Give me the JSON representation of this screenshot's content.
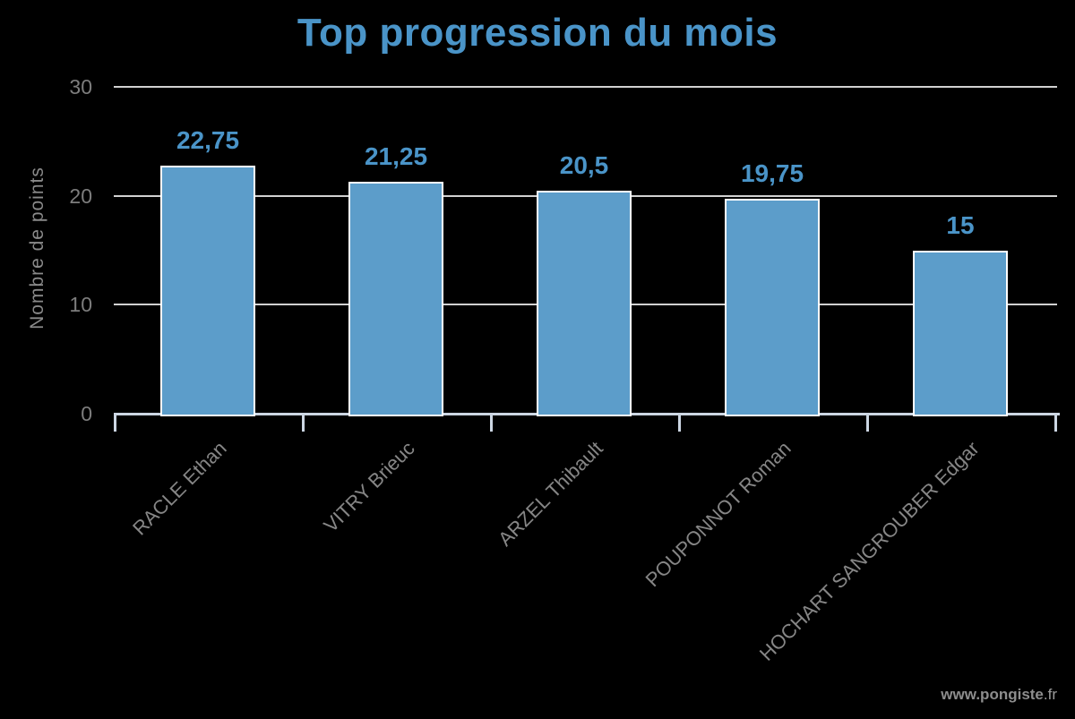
{
  "title": "Top progression du mois",
  "watermark": {
    "bold": "www.pongiste",
    "light": ".fr"
  },
  "chart_data": {
    "type": "bar",
    "title": "Top progression du mois",
    "xlabel": "",
    "ylabel": "Nombre de points",
    "categories": [
      "RACLE Ethan",
      "VITRY Brieuc",
      "ARZEL Thibault",
      "POUPONNOT Roman",
      "HOCHART SANGROUBER Edgar"
    ],
    "values": [
      22.75,
      21.25,
      20.5,
      19.75,
      15
    ],
    "value_labels": [
      "22,75",
      "21,25",
      "20,5",
      "19,75",
      "15"
    ],
    "yticks": [
      0,
      10,
      20,
      30
    ],
    "ylim": [
      0,
      30
    ],
    "grid": true,
    "legend": false,
    "colors": {
      "background": "#000000",
      "bar_fill": "#5c9dca",
      "bar_border": "#ffffff",
      "title_text": "#4a94c8",
      "value_text": "#4a94c8",
      "gridline": "#d1d1d1",
      "axis_line": "#ccd6e3",
      "tick_text": "#7d7d7d",
      "category_text": "#868686",
      "ylabel_text": "#8a8a8a",
      "watermark_bold": "#8d8d8d",
      "watermark_light": "#9c9c9c"
    }
  }
}
